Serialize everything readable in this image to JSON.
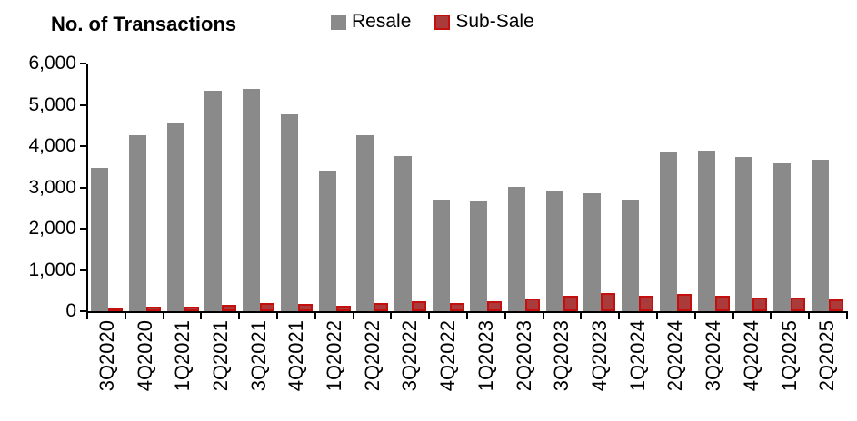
{
  "title": "No. of Transactions",
  "legend": {
    "items": [
      {
        "label": "Resale",
        "color": "#8a8a8a"
      },
      {
        "label": "Sub-Sale",
        "color": "#ab3a3a",
        "border_color": "#c40f0f"
      }
    ]
  },
  "y_axis": {
    "tick_labels_top_to_bottom": [
      "6,000",
      "5,000",
      "4,000",
      "3,000",
      "2,000",
      "1,000",
      "0"
    ]
  },
  "chart_data": {
    "type": "bar",
    "title": "No. of Transactions",
    "categories": [
      "3Q2020",
      "4Q2020",
      "1Q2021",
      "2Q2021",
      "3Q2021",
      "4Q2021",
      "1Q2022",
      "2Q2022",
      "3Q2022",
      "4Q2022",
      "1Q2023",
      "2Q2023",
      "3Q2023",
      "4Q2023",
      "1Q2024",
      "2Q2024",
      "3Q2024",
      "4Q2024",
      "1Q2025",
      "2Q2025"
    ],
    "series": [
      {
        "name": "Resale",
        "color": "#8a8a8a",
        "values": [
          3480,
          4270,
          4540,
          5340,
          5390,
          4760,
          3390,
          4260,
          3750,
          2710,
          2650,
          3010,
          2920,
          2860,
          2710,
          3840,
          3890,
          3730,
          3590,
          3660
        ]
      },
      {
        "name": "Sub-Sale",
        "color": "#ab3a3a",
        "border_color": "#c40f0f",
        "values": [
          80,
          100,
          100,
          160,
          200,
          170,
          130,
          190,
          240,
          200,
          250,
          300,
          370,
          440,
          380,
          420,
          370,
          320,
          330,
          280
        ]
      }
    ],
    "xlabel": "",
    "ylabel": "",
    "ylim": [
      0,
      6000
    ],
    "ytick_interval": 1000,
    "grid": false,
    "legend_position": "top-center",
    "bar_style": "grouped",
    "axis_color": "#000000",
    "text_color": "#000000"
  }
}
